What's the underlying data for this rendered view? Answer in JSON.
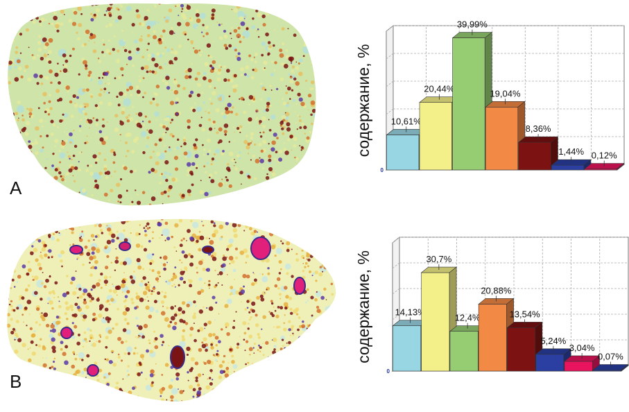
{
  "panels": [
    {
      "label": "A",
      "map_name": "speckle-map-a"
    },
    {
      "label": "B",
      "map_name": "speckle-map-b"
    }
  ],
  "colors": {
    "cyan": "#98d6e4",
    "yellow": "#f4f089",
    "green": "#96cd72",
    "orange": "#f28944",
    "maroon": "#7c1212",
    "blue": "#2b3fa3",
    "pink": "#e8145e"
  },
  "chart_data": [
    {
      "type": "bar",
      "panel": "A",
      "ylabel": "содержание, %",
      "ytick_label": "0",
      "ylim": [
        0,
        42
      ],
      "series": [
        {
          "value": 10.61,
          "label": "10,61%",
          "color": "#98d6e4"
        },
        {
          "value": 20.44,
          "label": "20,44%",
          "color": "#f4f089"
        },
        {
          "value": 39.99,
          "label": "39,99%",
          "color": "#96cd72"
        },
        {
          "value": 19.04,
          "label": "19,04%",
          "color": "#f28944"
        },
        {
          "value": 8.36,
          "label": "8,36%",
          "color": "#7c1212"
        },
        {
          "value": 1.44,
          "label": "1,44%",
          "color": "#2b3fa3"
        },
        {
          "value": 0.12,
          "label": "0,12%",
          "color": "#e8145e"
        }
      ]
    },
    {
      "type": "bar",
      "panel": "B",
      "ylabel": "содержание, %",
      "ytick_label": "0",
      "ylim": [
        0,
        40
      ],
      "series": [
        {
          "value": 14.13,
          "label": "14,13%",
          "color": "#98d6e4"
        },
        {
          "value": 30.7,
          "label": "30,7%",
          "color": "#f4f089"
        },
        {
          "value": 12.4,
          "label": "12,4%",
          "color": "#96cd72"
        },
        {
          "value": 20.88,
          "label": "20,88%",
          "color": "#f28944"
        },
        {
          "value": 13.54,
          "label": "13,54%",
          "color": "#7c1212"
        },
        {
          "value": 5.24,
          "label": "5,24%",
          "color": "#2b3fa3"
        },
        {
          "value": 3.04,
          "label": "3,04%",
          "color": "#e8145e"
        },
        {
          "value": 0.07,
          "label": "0,07%",
          "color": "#2b3fa3"
        }
      ]
    }
  ]
}
